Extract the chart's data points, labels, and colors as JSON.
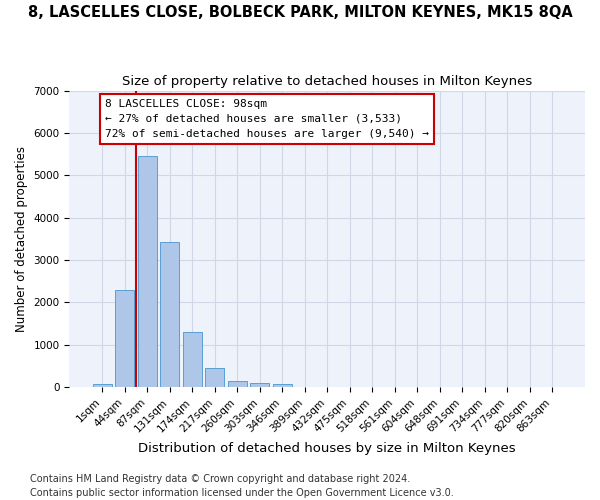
{
  "title": "8, LASCELLES CLOSE, BOLBECK PARK, MILTON KEYNES, MK15 8QA",
  "subtitle": "Size of property relative to detached houses in Milton Keynes",
  "xlabel": "Distribution of detached houses by size in Milton Keynes",
  "ylabel": "Number of detached properties",
  "footnote1": "Contains HM Land Registry data © Crown copyright and database right 2024.",
  "footnote2": "Contains public sector information licensed under the Open Government Licence v3.0.",
  "bin_labels": [
    "1sqm",
    "44sqm",
    "87sqm",
    "131sqm",
    "174sqm",
    "217sqm",
    "260sqm",
    "303sqm",
    "346sqm",
    "389sqm",
    "432sqm",
    "475sqm",
    "518sqm",
    "561sqm",
    "604sqm",
    "648sqm",
    "691sqm",
    "734sqm",
    "777sqm",
    "820sqm",
    "863sqm"
  ],
  "bar_values": [
    75,
    2300,
    5450,
    3430,
    1310,
    460,
    155,
    95,
    65,
    0,
    0,
    0,
    0,
    0,
    0,
    0,
    0,
    0,
    0,
    0,
    0
  ],
  "bar_color": "#aec6e8",
  "bar_edge_color": "#5a9fd4",
  "grid_color": "#d0d8e8",
  "background_color": "#eef2fa",
  "vline_color": "#cc0000",
  "annotation_text": "8 LASCELLES CLOSE: 98sqm\n← 27% of detached houses are smaller (3,533)\n72% of semi-detached houses are larger (9,540) →",
  "annotation_box_edge_color": "#cc0000",
  "ylim": [
    0,
    7000
  ],
  "title_fontsize": 10.5,
  "subtitle_fontsize": 9.5,
  "xlabel_fontsize": 9.5,
  "ylabel_fontsize": 8.5,
  "tick_fontsize": 7.5,
  "footnote_fontsize": 7
}
